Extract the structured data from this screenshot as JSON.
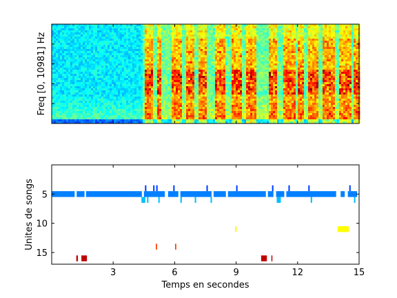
{
  "chart_data": [
    {
      "type": "heatmap",
      "title": "",
      "ylabel": "Freq [0, 10981] Hz",
      "xlabel": "",
      "xlim": [
        0,
        15
      ],
      "ylim": [
        0,
        10981
      ],
      "colormap": "jet",
      "xticks": [
        3,
        6,
        9,
        12,
        15
      ],
      "show_tick_labels": false,
      "low_energy_until_s": 4.4,
      "strong_energy_bands_s": [
        [
          4.5,
          4.9
        ],
        [
          5.1,
          5.3
        ],
        [
          5.9,
          6.4
        ],
        [
          6.6,
          7.0
        ],
        [
          7.2,
          7.6
        ],
        [
          8.0,
          8.5
        ],
        [
          8.8,
          9.3
        ],
        [
          9.5,
          10.0
        ],
        [
          10.6,
          11.0
        ],
        [
          11.3,
          11.9
        ],
        [
          12.0,
          12.3
        ],
        [
          12.5,
          13.0
        ],
        [
          13.2,
          13.8
        ],
        [
          14.0,
          14.6
        ],
        [
          14.7,
          15.0
        ]
      ]
    },
    {
      "type": "scatter",
      "title": "",
      "xlabel": "Temps en secondes",
      "ylabel": "Unites de songs",
      "xlim": [
        0,
        15
      ],
      "ylim": [
        17,
        0
      ],
      "xticks": [
        3,
        6,
        9,
        12,
        15
      ],
      "yticks": [
        5,
        10,
        15
      ],
      "colormap": "jet",
      "color_range": [
        1,
        17
      ],
      "segments": [
        {
          "unit": 5,
          "x0": 0.0,
          "x1": 1.12
        },
        {
          "unit": 5,
          "x0": 1.22,
          "x1": 1.6
        },
        {
          "unit": 5,
          "x0": 1.68,
          "x1": 4.4
        },
        {
          "unit": 5,
          "x0": 4.5,
          "x1": 5.52
        },
        {
          "unit": 5,
          "x0": 5.68,
          "x1": 6.18
        },
        {
          "unit": 5,
          "x0": 6.28,
          "x1": 7.8
        },
        {
          "unit": 5,
          "x0": 7.9,
          "x1": 8.5
        },
        {
          "unit": 5,
          "x0": 8.6,
          "x1": 10.45
        },
        {
          "unit": 5,
          "x0": 10.55,
          "x1": 10.82
        },
        {
          "unit": 5,
          "x0": 10.95,
          "x1": 11.35
        },
        {
          "unit": 5,
          "x0": 11.45,
          "x1": 13.88
        },
        {
          "unit": 5,
          "x0": 14.1,
          "x1": 14.3
        },
        {
          "unit": 5,
          "x0": 14.45,
          "x1": 14.9
        },
        {
          "unit": 4,
          "x0": 4.55,
          "x1": 4.62
        },
        {
          "unit": 4,
          "x0": 4.95,
          "x1": 5.02
        },
        {
          "unit": 4,
          "x0": 5.1,
          "x1": 5.17
        },
        {
          "unit": 4,
          "x0": 5.93,
          "x1": 6.0
        },
        {
          "unit": 4,
          "x0": 7.55,
          "x1": 7.62
        },
        {
          "unit": 4,
          "x0": 9.0,
          "x1": 9.07
        },
        {
          "unit": 4,
          "x0": 10.75,
          "x1": 10.82
        },
        {
          "unit": 4,
          "x0": 11.55,
          "x1": 11.62
        },
        {
          "unit": 4,
          "x0": 12.52,
          "x1": 12.59
        },
        {
          "unit": 4,
          "x0": 14.52,
          "x1": 14.59
        },
        {
          "unit": 6,
          "x0": 4.38,
          "x1": 4.57
        },
        {
          "unit": 6,
          "x0": 4.65,
          "x1": 4.72
        },
        {
          "unit": 6,
          "x0": 5.2,
          "x1": 5.27
        },
        {
          "unit": 6,
          "x0": 6.28,
          "x1": 6.35
        },
        {
          "unit": 6,
          "x0": 6.98,
          "x1": 7.05
        },
        {
          "unit": 6,
          "x0": 7.75,
          "x1": 7.82
        },
        {
          "unit": 6,
          "x0": 10.98,
          "x1": 11.18
        },
        {
          "unit": 6,
          "x0": 12.64,
          "x1": 12.71
        },
        {
          "unit": 6,
          "x0": 14.75,
          "x1": 14.82
        },
        {
          "unit": 11,
          "x0": 8.95,
          "x1": 9.02
        },
        {
          "unit": 11,
          "x0": 13.95,
          "x1": 14.5
        },
        {
          "unit": 14,
          "x0": 5.08,
          "x1": 5.14
        },
        {
          "unit": 14,
          "x0": 6.02,
          "x1": 6.08
        },
        {
          "unit": 16,
          "x0": 1.2,
          "x1": 1.28
        },
        {
          "unit": 16,
          "x0": 1.45,
          "x1": 1.72
        },
        {
          "unit": 16,
          "x0": 10.22,
          "x1": 10.5
        },
        {
          "unit": 16,
          "x0": 10.72,
          "x1": 10.77
        }
      ]
    }
  ]
}
